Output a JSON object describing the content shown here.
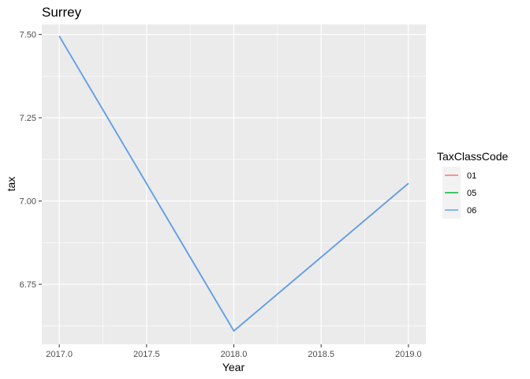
{
  "chart_data": {
    "type": "line",
    "title": "Surrey",
    "xlabel": "Year",
    "ylabel": "tax",
    "xlim": [
      2016.9,
      2019.1
    ],
    "ylim": [
      6.57,
      7.53
    ],
    "x_ticks": [
      2017.0,
      2017.5,
      2018.0,
      2018.5,
      2019.0
    ],
    "x_tick_labels": [
      "2017.0",
      "2017.5",
      "2018.0",
      "2018.5",
      "2019.0"
    ],
    "y_ticks": [
      6.75,
      7.0,
      7.25,
      7.5
    ],
    "y_tick_labels": [
      "6.75",
      "7.00",
      "7.25",
      "7.50"
    ],
    "grid": true,
    "legend": {
      "title": "TaxClassCode",
      "placement": "right",
      "entries": [
        {
          "name": "01",
          "color": "#F8766D"
        },
        {
          "name": "05",
          "color": "#00BA38"
        },
        {
          "name": "06",
          "color": "#619CFF"
        }
      ]
    },
    "series": [
      {
        "name": "01",
        "color": "#F8766D",
        "x": [
          2017,
          2018,
          2019
        ],
        "y": [
          7.495,
          6.61,
          7.053
        ]
      },
      {
        "name": "05",
        "color": "#00BA38",
        "x": [
          2017,
          2018,
          2019
        ],
        "y": [
          7.495,
          6.61,
          7.053
        ]
      },
      {
        "name": "06",
        "color": "#619CFF",
        "x": [
          2017,
          2018,
          2019
        ],
        "y": [
          7.495,
          6.61,
          7.053
        ]
      }
    ],
    "panel_background": "#EBEBEB",
    "grid_color": "#FFFFFF"
  }
}
